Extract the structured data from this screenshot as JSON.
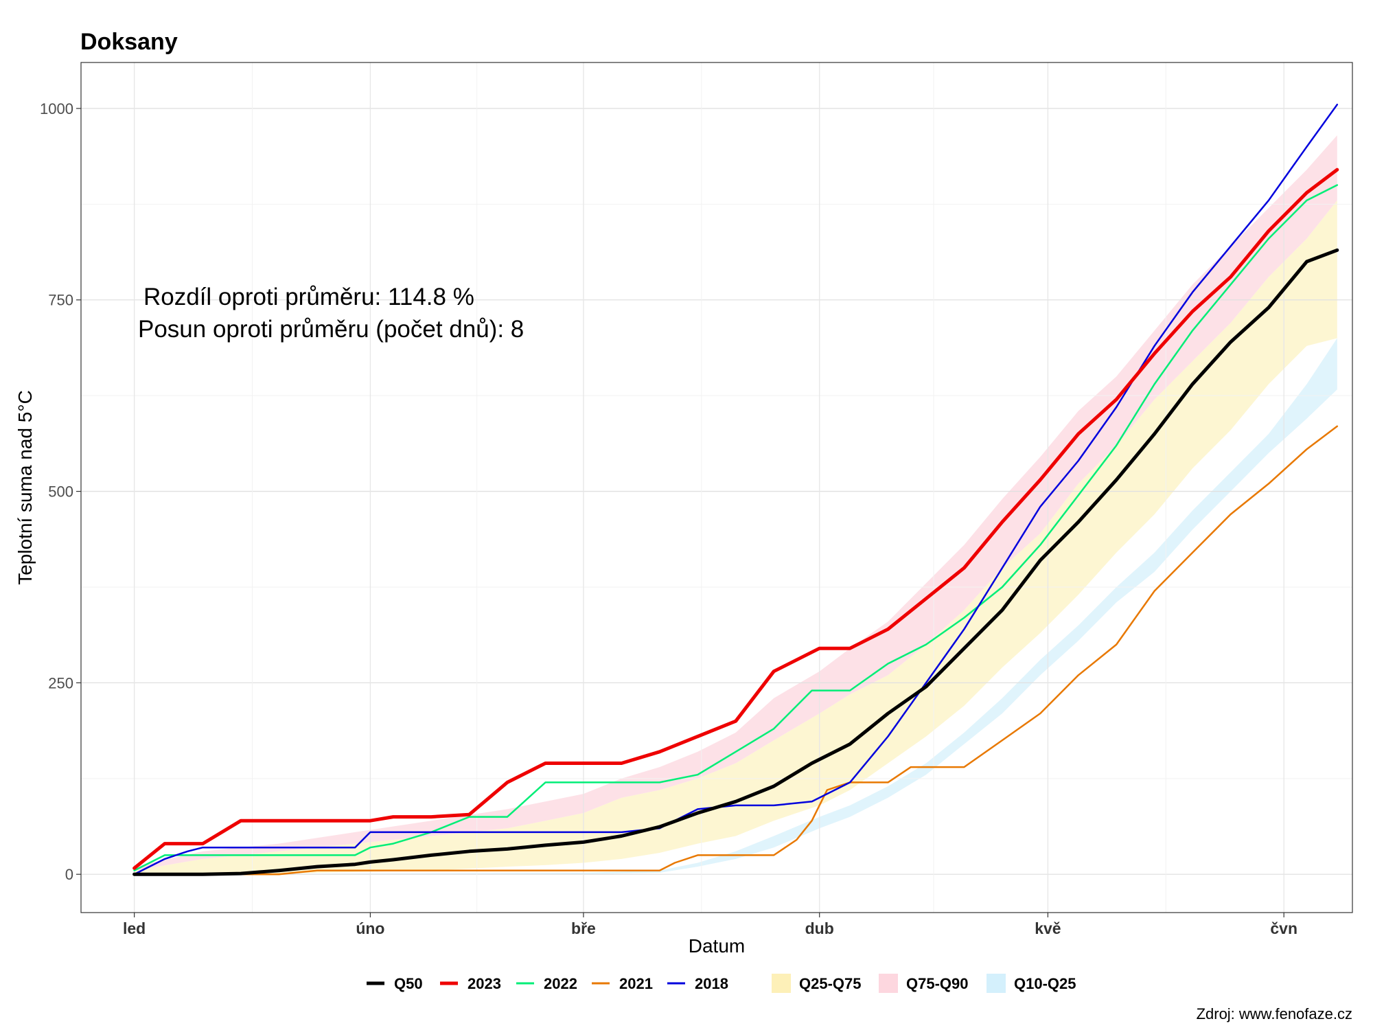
{
  "chart_data": {
    "type": "line",
    "title": "Doksany",
    "xlabel": "Datum",
    "ylabel": "Teplotní suma nad 5°C",
    "ylim": [
      -50,
      1060
    ],
    "yticks": [
      0,
      250,
      500,
      750,
      1000
    ],
    "x_unit": "day of year",
    "xlim": [
      -6,
      161
    ],
    "xticks": [
      {
        "label": "led",
        "day": 1
      },
      {
        "label": "úno",
        "day": 32
      },
      {
        "label": "bře",
        "day": 60
      },
      {
        "label": "dub",
        "day": 91
      },
      {
        "label": "kvě",
        "day": 121
      },
      {
        "label": "čvn",
        "day": 152
      }
    ],
    "grid": true,
    "legend_position": "bottom",
    "annotations": [
      "Rozdíl oproti průměru: 114.8 %",
      "Posun oproti průměru (počet dnů): 8"
    ],
    "source_note": "Zdroj: www.fenofaze.cz",
    "bands": [
      {
        "name": "Q10-Q25",
        "color": "#e0f4fc",
        "x": [
          1,
          60,
          70,
          75,
          80,
          85,
          91,
          95,
          100,
          105,
          110,
          115,
          120,
          125,
          130,
          135,
          140,
          145,
          150,
          155,
          159
        ],
        "lower": [
          0,
          0,
          2,
          10,
          20,
          35,
          60,
          75,
          100,
          130,
          170,
          210,
          260,
          305,
          355,
          395,
          450,
          500,
          550,
          595,
          633
        ],
        "upper": [
          0,
          2,
          5,
          15,
          30,
          50,
          75,
          90,
          115,
          145,
          185,
          230,
          280,
          325,
          375,
          420,
          475,
          525,
          575,
          640,
          700
        ]
      },
      {
        "name": "Q25-Q75",
        "color": "#fdf6d2",
        "x": [
          1,
          10,
          20,
          30,
          40,
          50,
          55,
          60,
          65,
          70,
          75,
          80,
          85,
          91,
          95,
          100,
          105,
          110,
          115,
          120,
          125,
          130,
          135,
          140,
          145,
          150,
          155,
          159
        ],
        "lower": [
          0,
          0,
          1,
          3,
          5,
          10,
          12,
          15,
          20,
          28,
          40,
          50,
          70,
          90,
          110,
          145,
          180,
          220,
          270,
          315,
          365,
          420,
          470,
          530,
          580,
          640,
          690,
          700
        ],
        "upper": [
          5,
          20,
          30,
          40,
          50,
          60,
          70,
          80,
          100,
          110,
          125,
          145,
          175,
          210,
          235,
          260,
          300,
          345,
          400,
          445,
          510,
          560,
          620,
          670,
          720,
          780,
          830,
          880
        ]
      },
      {
        "name": "Q75-Q90",
        "color": "#fde1e7",
        "x": [
          1,
          10,
          20,
          30,
          40,
          50,
          55,
          60,
          65,
          70,
          75,
          80,
          85,
          91,
          95,
          100,
          105,
          110,
          115,
          120,
          125,
          130,
          135,
          140,
          145,
          150,
          155,
          159
        ],
        "lower": [
          5,
          20,
          30,
          40,
          50,
          60,
          70,
          80,
          100,
          110,
          125,
          145,
          175,
          210,
          235,
          260,
          300,
          345,
          400,
          445,
          510,
          560,
          620,
          670,
          720,
          780,
          830,
          880
        ],
        "upper": [
          10,
          30,
          40,
          55,
          70,
          85,
          95,
          105,
          125,
          140,
          160,
          185,
          230,
          265,
          295,
          330,
          380,
          430,
          490,
          545,
          605,
          650,
          710,
          770,
          820,
          870,
          920,
          965
        ]
      }
    ],
    "series": [
      {
        "name": "Q50",
        "color": "#000000",
        "width": 5,
        "x": [
          1,
          10,
          15,
          20,
          25,
          30,
          32,
          35,
          40,
          45,
          50,
          55,
          60,
          65,
          70,
          75,
          80,
          85,
          90,
          95,
          100,
          105,
          110,
          115,
          120,
          125,
          130,
          135,
          140,
          145,
          150,
          155,
          159
        ],
        "y": [
          0,
          0,
          1,
          5,
          10,
          13,
          16,
          19,
          25,
          30,
          33,
          38,
          42,
          50,
          62,
          80,
          95,
          115,
          145,
          170,
          210,
          245,
          295,
          345,
          410,
          460,
          515,
          575,
          640,
          695,
          740,
          800,
          815
        ]
      },
      {
        "name": "2023",
        "color": "#ee0000",
        "width": 5,
        "x": [
          1,
          5,
          10,
          15,
          20,
          25,
          32,
          35,
          40,
          45,
          50,
          55,
          60,
          65,
          70,
          75,
          80,
          85,
          91,
          95,
          100,
          105,
          110,
          115,
          120,
          125,
          130,
          135,
          140,
          145,
          150,
          155,
          159
        ],
        "y": [
          8,
          40,
          40,
          70,
          70,
          70,
          70,
          75,
          75,
          78,
          120,
          145,
          145,
          145,
          160,
          180,
          200,
          265,
          295,
          295,
          320,
          360,
          400,
          460,
          515,
          575,
          620,
          680,
          735,
          780,
          840,
          890,
          920
        ]
      },
      {
        "name": "2022",
        "color": "#00ee77",
        "width": 2.5,
        "x": [
          1,
          5,
          10,
          20,
          25,
          30,
          32,
          35,
          40,
          45,
          50,
          55,
          60,
          65,
          70,
          75,
          80,
          85,
          90,
          95,
          100,
          105,
          110,
          115,
          120,
          125,
          130,
          135,
          140,
          145,
          150,
          155,
          159
        ],
        "y": [
          5,
          25,
          25,
          25,
          25,
          25,
          35,
          40,
          55,
          75,
          75,
          120,
          120,
          120,
          120,
          130,
          160,
          190,
          240,
          240,
          275,
          300,
          335,
          375,
          430,
          495,
          560,
          640,
          710,
          770,
          830,
          880,
          900
        ]
      },
      {
        "name": "2021",
        "color": "#e87800",
        "width": 2.5,
        "x": [
          1,
          20,
          25,
          30,
          35,
          40,
          50,
          55,
          60,
          65,
          70,
          72,
          75,
          80,
          83,
          85,
          88,
          90,
          92,
          95,
          100,
          103,
          105,
          110,
          115,
          120,
          125,
          130,
          135,
          140,
          145,
          150,
          155,
          159
        ],
        "y": [
          0,
          0,
          5,
          5,
          5,
          5,
          5,
          5,
          5,
          5,
          5,
          15,
          25,
          25,
          25,
          25,
          45,
          70,
          110,
          120,
          120,
          140,
          140,
          140,
          175,
          210,
          260,
          300,
          370,
          420,
          470,
          510,
          555,
          585
        ]
      },
      {
        "name": "2018",
        "color": "#0000dd",
        "width": 2.5,
        "x": [
          1,
          5,
          8,
          10,
          15,
          20,
          25,
          30,
          32,
          35,
          40,
          45,
          50,
          55,
          60,
          65,
          70,
          75,
          80,
          85,
          90,
          95,
          100,
          105,
          110,
          115,
          120,
          125,
          130,
          135,
          140,
          145,
          150,
          155,
          159
        ],
        "y": [
          0,
          20,
          30,
          35,
          35,
          35,
          35,
          35,
          55,
          55,
          55,
          55,
          55,
          55,
          55,
          55,
          60,
          85,
          90,
          90,
          95,
          120,
          180,
          250,
          320,
          400,
          480,
          540,
          610,
          690,
          760,
          820,
          880,
          950,
          1005
        ]
      }
    ],
    "legend": [
      {
        "label": "Q50",
        "type": "line",
        "color": "#000000"
      },
      {
        "label": "2023",
        "type": "line",
        "color": "#ee0000"
      },
      {
        "label": "2022",
        "type": "line",
        "color": "#00ee77"
      },
      {
        "label": "2021",
        "type": "line",
        "color": "#e87800"
      },
      {
        "label": "2018",
        "type": "line",
        "color": "#0000dd"
      },
      {
        "label": "Q25-Q75",
        "type": "fill",
        "color": "#fdf0b8"
      },
      {
        "label": "Q75-Q90",
        "type": "fill",
        "color": "#fdd7df"
      },
      {
        "label": "Q10-Q25",
        "type": "fill",
        "color": "#d4f0fc"
      }
    ]
  }
}
